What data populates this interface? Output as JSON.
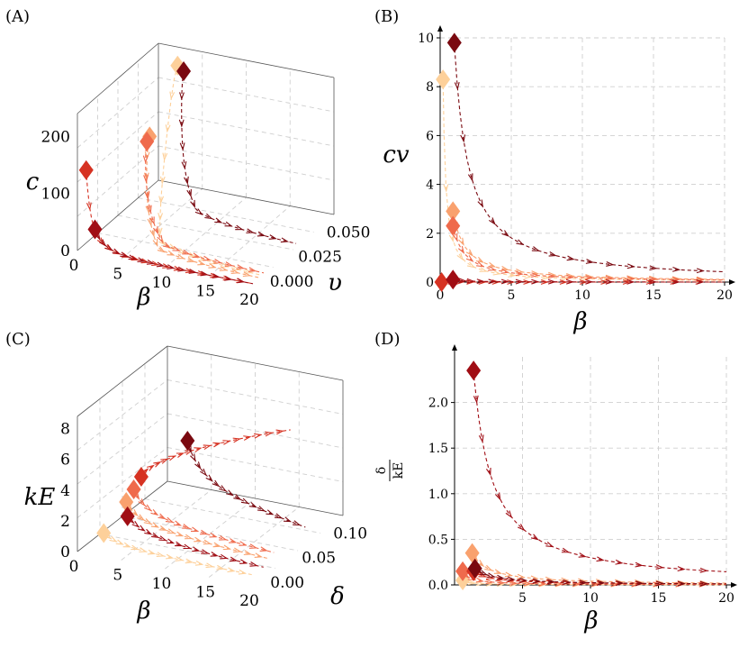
{
  "colors": {
    "c1": "#fdd09a",
    "c2": "#f9a16e",
    "c3": "#ef6a4c",
    "c4": "#d63222",
    "c5": "#a00d14",
    "c6": "#7a0910"
  },
  "chart_data": [
    {
      "panel": "(A)",
      "type": "line3d",
      "xlabel": "β",
      "ylabel": "υ",
      "zlabel": "c",
      "xlim": [
        0,
        20
      ],
      "ylim": [
        0,
        0.06
      ],
      "zlim": [
        0,
        250
      ],
      "xticks": [
        "0",
        "5",
        "10",
        "15",
        "20"
      ],
      "yticks": [
        "0.000",
        "0.025",
        "0.050"
      ],
      "zticks": [
        "0",
        "100",
        "200"
      ],
      "series": [
        {
          "color": "c1",
          "b0": 3,
          "v0": 0.0547,
          "c0": 230,
          "k": 3.2,
          "vEnd": 0.005
        },
        {
          "color": "c2",
          "b0": 3,
          "v0": 0.034,
          "c0": 145,
          "k": 2.8,
          "vEnd": 0.004
        },
        {
          "color": "c3",
          "b0": 3,
          "v0": 0.032,
          "c0": 140,
          "k": 2.6,
          "vEnd": 0.008
        },
        {
          "color": "c4",
          "b0": 1,
          "v0": 0.0,
          "c0": 150,
          "k": 1.0,
          "vEnd": 0.0
        },
        {
          "color": "c5",
          "b0": 2,
          "v0": 0.0,
          "c0": 45,
          "k": 1.0,
          "vEnd": 0.0
        },
        {
          "color": "c6",
          "b0": 3,
          "v0": 0.0592,
          "c0": 210,
          "k": 3.2,
          "vEnd": 0.032
        }
      ]
    },
    {
      "panel": "(B)",
      "type": "line",
      "xlabel": "β",
      "ylabel": "cv",
      "xlim": [
        0,
        20
      ],
      "ylim": [
        0,
        10
      ],
      "xticks": [
        0,
        5,
        10,
        15,
        20
      ],
      "yticks": [
        0,
        2,
        4,
        6,
        8,
        10
      ],
      "series": [
        {
          "color": "c1",
          "x0": 0.2,
          "y0": 8.3,
          "k": 1.7
        },
        {
          "color": "c2",
          "x0": 0.9,
          "y0": 2.9,
          "k": 2.6
        },
        {
          "color": "c3",
          "x0": 0.9,
          "y0": 2.3,
          "k": 2.1
        },
        {
          "color": "c4",
          "x0": 0.1,
          "y0": 0.0,
          "k": 0.0
        },
        {
          "color": "c5",
          "x0": 0.9,
          "y0": 0.1,
          "k": 0.1
        },
        {
          "color": "c6",
          "x0": 1.0,
          "y0": 9.8,
          "k": 9.8
        }
      ]
    },
    {
      "panel": "(C)",
      "type": "line3d",
      "xlabel": "β",
      "ylabel": "δ",
      "zlabel": "k_E",
      "xlim": [
        0,
        20
      ],
      "ylim": [
        0,
        0.12
      ],
      "zlim": [
        0,
        8
      ],
      "xticks": [
        "0",
        "5",
        "10",
        "15",
        "20"
      ],
      "yticks": [
        "0.00",
        "0.05",
        "0.10"
      ],
      "zticks": [
        "0",
        "2",
        "4",
        "6",
        "8"
      ],
      "series": [
        {
          "color": "c1",
          "b0": 3,
          "d0": 0.0,
          "k0": 1.4,
          "kEnd": 0.6
        },
        {
          "color": "c2",
          "b0": 3,
          "d0": 0.03,
          "k0": 2.2,
          "kEnd": 0.8
        },
        {
          "color": "c3",
          "b0": 3,
          "d0": 0.04,
          "k0": 2.6,
          "kEnd": 0.9
        },
        {
          "color": "c4",
          "b0": 3,
          "d0": 0.05,
          "k0": 3.0,
          "kEnd": 7.5
        },
        {
          "color": "c5",
          "b0": 4,
          "d0": 0.02,
          "k0": 1.8,
          "kEnd": 0.5
        },
        {
          "color": "c6",
          "b0": 4,
          "d0": 0.1,
          "k0": 3.5,
          "kEnd": 0.8
        }
      ]
    },
    {
      "panel": "(D)",
      "type": "line",
      "xlabel": "β",
      "ylabel": "δ/k_E",
      "xlim": [
        0,
        20
      ],
      "ylim": [
        0,
        2.5
      ],
      "xticks": [
        5,
        10,
        15,
        20
      ],
      "yticks": [
        "0.0",
        "0.5",
        "1.0",
        "1.5",
        "2.0"
      ],
      "series": [
        {
          "color": "c1",
          "x0": 0.6,
          "y0": 0.05,
          "k": 0.03
        },
        {
          "color": "c2",
          "x0": 1.3,
          "y0": 0.35,
          "k": 0.25
        },
        {
          "color": "c3",
          "x0": 0.6,
          "y0": 0.15,
          "k": 0.1
        },
        {
          "color": "c4",
          "x0": 1.4,
          "y0": 0.15,
          "k": 0.18
        },
        {
          "color": "c5",
          "x0": 1.4,
          "y0": 2.35,
          "k": 2.1
        },
        {
          "color": "c6",
          "x0": 1.5,
          "y0": 0.18,
          "k": 0.2
        }
      ]
    }
  ],
  "labels": {
    "A": "(A)",
    "B": "(B)",
    "C": "(C)",
    "D": "(D)"
  }
}
